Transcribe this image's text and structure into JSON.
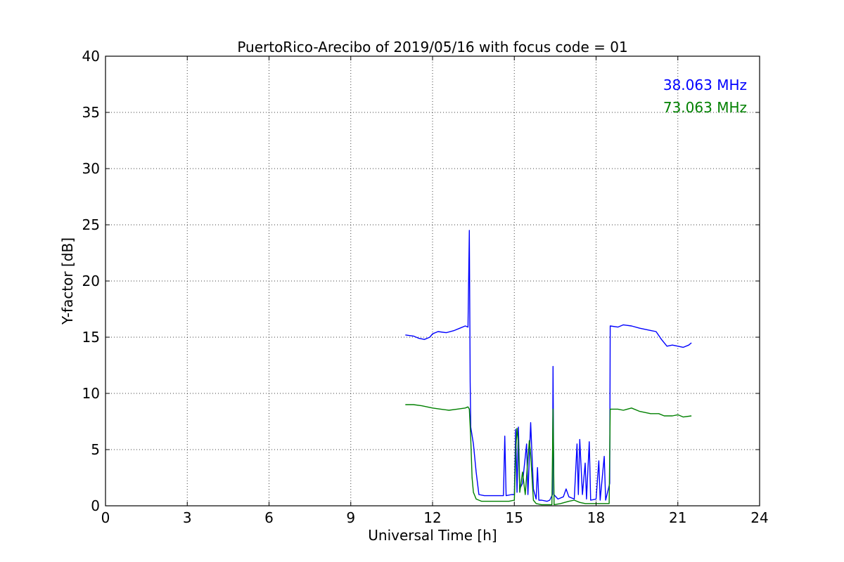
{
  "chart_data": {
    "type": "line",
    "title": "PuertoRico-Arecibo of 2019/05/16 with focus code = 01",
    "xlabel": "Universal Time [h]",
    "ylabel": "Y-factor [dB]",
    "xlim": [
      0,
      24
    ],
    "ylim": [
      0,
      40
    ],
    "xticks": [
      0,
      3,
      6,
      9,
      12,
      15,
      18,
      21,
      24
    ],
    "yticks": [
      0,
      5,
      10,
      15,
      20,
      25,
      30,
      35,
      40
    ],
    "grid": true,
    "legend_position": "top-right",
    "series": [
      {
        "name": "38.063 MHz",
        "color": "#0000ff",
        "points": [
          [
            11.0,
            15.2
          ],
          [
            11.3,
            15.1
          ],
          [
            11.5,
            14.9
          ],
          [
            11.7,
            14.8
          ],
          [
            11.9,
            15.0
          ],
          [
            12.0,
            15.3
          ],
          [
            12.2,
            15.5
          ],
          [
            12.5,
            15.4
          ],
          [
            12.8,
            15.6
          ],
          [
            13.0,
            15.8
          ],
          [
            13.2,
            16.0
          ],
          [
            13.3,
            15.9
          ],
          [
            13.35,
            24.5
          ],
          [
            13.38,
            11.0
          ],
          [
            13.4,
            7.0
          ],
          [
            13.5,
            5.5
          ],
          [
            13.6,
            3.0
          ],
          [
            13.7,
            1.0
          ],
          [
            13.9,
            0.9
          ],
          [
            14.2,
            0.9
          ],
          [
            14.5,
            0.9
          ],
          [
            14.6,
            0.9
          ],
          [
            14.65,
            6.2
          ],
          [
            14.7,
            0.9
          ],
          [
            14.9,
            1.0
          ],
          [
            15.0,
            1.0
          ],
          [
            15.05,
            6.8
          ],
          [
            15.1,
            1.2
          ],
          [
            15.15,
            7.0
          ],
          [
            15.2,
            1.5
          ],
          [
            15.3,
            2.0
          ],
          [
            15.45,
            5.5
          ],
          [
            15.5,
            1.0
          ],
          [
            15.6,
            7.4
          ],
          [
            15.7,
            1.5
          ],
          [
            15.8,
            0.6
          ],
          [
            15.85,
            3.4
          ],
          [
            15.9,
            0.5
          ],
          [
            16.0,
            0.5
          ],
          [
            16.2,
            0.4
          ],
          [
            16.3,
            0.5
          ],
          [
            16.4,
            1.0
          ],
          [
            16.42,
            12.4
          ],
          [
            16.45,
            1.0
          ],
          [
            16.6,
            0.6
          ],
          [
            16.8,
            0.8
          ],
          [
            16.9,
            1.5
          ],
          [
            17.0,
            0.8
          ],
          [
            17.2,
            0.6
          ],
          [
            17.3,
            5.5
          ],
          [
            17.35,
            1.0
          ],
          [
            17.4,
            5.9
          ],
          [
            17.5,
            1.0
          ],
          [
            17.6,
            3.8
          ],
          [
            17.65,
            0.6
          ],
          [
            17.75,
            5.7
          ],
          [
            17.8,
            0.5
          ],
          [
            18.0,
            0.6
          ],
          [
            18.1,
            4.0
          ],
          [
            18.15,
            0.5
          ],
          [
            18.3,
            4.4
          ],
          [
            18.35,
            0.5
          ],
          [
            18.5,
            2.0
          ],
          [
            18.52,
            16.0
          ],
          [
            18.8,
            15.9
          ],
          [
            19.0,
            16.1
          ],
          [
            19.3,
            16.0
          ],
          [
            19.6,
            15.8
          ],
          [
            20.0,
            15.6
          ],
          [
            20.2,
            15.5
          ],
          [
            20.4,
            14.8
          ],
          [
            20.6,
            14.2
          ],
          [
            20.8,
            14.3
          ],
          [
            21.0,
            14.2
          ],
          [
            21.2,
            14.1
          ],
          [
            21.4,
            14.3
          ],
          [
            21.5,
            14.5
          ]
        ]
      },
      {
        "name": "73.063 MHz",
        "color": "#008000",
        "points": [
          [
            11.0,
            9.0
          ],
          [
            11.3,
            9.0
          ],
          [
            11.6,
            8.9
          ],
          [
            11.8,
            8.8
          ],
          [
            12.0,
            8.7
          ],
          [
            12.3,
            8.6
          ],
          [
            12.6,
            8.5
          ],
          [
            12.9,
            8.6
          ],
          [
            13.2,
            8.7
          ],
          [
            13.3,
            8.8
          ],
          [
            13.35,
            8.6
          ],
          [
            13.4,
            6.0
          ],
          [
            13.45,
            2.5
          ],
          [
            13.5,
            1.2
          ],
          [
            13.6,
            0.6
          ],
          [
            13.8,
            0.4
          ],
          [
            14.0,
            0.4
          ],
          [
            14.4,
            0.4
          ],
          [
            14.8,
            0.4
          ],
          [
            15.0,
            0.5
          ],
          [
            15.05,
            4.8
          ],
          [
            15.1,
            6.9
          ],
          [
            15.15,
            5.5
          ],
          [
            15.2,
            1.2
          ],
          [
            15.3,
            3.0
          ],
          [
            15.4,
            1.0
          ],
          [
            15.5,
            4.2
          ],
          [
            15.55,
            5.8
          ],
          [
            15.6,
            4.5
          ],
          [
            15.7,
            0.5
          ],
          [
            15.8,
            0.2
          ],
          [
            16.0,
            0.1
          ],
          [
            16.2,
            0.1
          ],
          [
            16.38,
            0.1
          ],
          [
            16.42,
            8.6
          ],
          [
            16.46,
            0.1
          ],
          [
            16.7,
            0.2
          ],
          [
            17.0,
            0.4
          ],
          [
            17.2,
            0.5
          ],
          [
            17.4,
            0.3
          ],
          [
            17.6,
            0.2
          ],
          [
            17.8,
            0.2
          ],
          [
            18.0,
            0.2
          ],
          [
            18.3,
            0.2
          ],
          [
            18.48,
            0.2
          ],
          [
            18.52,
            8.6
          ],
          [
            18.8,
            8.6
          ],
          [
            19.0,
            8.5
          ],
          [
            19.3,
            8.7
          ],
          [
            19.6,
            8.4
          ],
          [
            20.0,
            8.2
          ],
          [
            20.3,
            8.2
          ],
          [
            20.5,
            8.0
          ],
          [
            20.8,
            8.0
          ],
          [
            21.0,
            8.1
          ],
          [
            21.2,
            7.9
          ],
          [
            21.5,
            8.0
          ]
        ]
      }
    ]
  }
}
